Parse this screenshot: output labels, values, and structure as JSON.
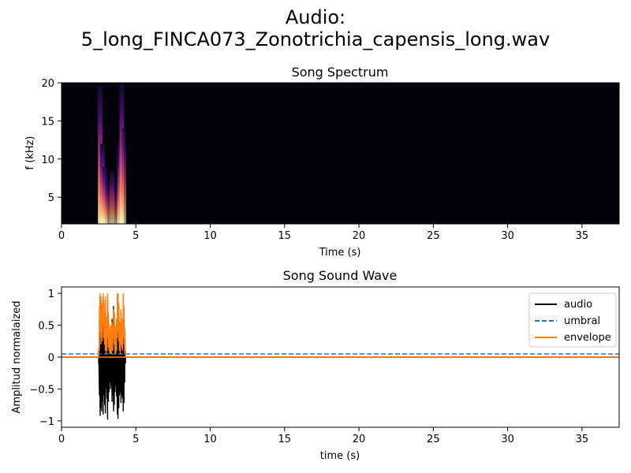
{
  "figure": {
    "title_line1": "Audio:",
    "title_line2": "5_long_FINCA073_Zonotrichia_capensis_long.wav"
  },
  "chart_data": [
    {
      "type": "heatmap",
      "title": "Song Spectrum",
      "xlabel": "Time (s)",
      "ylabel": "f (kHz)",
      "xlim": [
        0,
        37.5
      ],
      "ylim": [
        1.5,
        20
      ],
      "xticks": [
        0,
        5,
        10,
        15,
        20,
        25,
        30,
        35
      ],
      "yticks": [
        5,
        10,
        15,
        20
      ],
      "background_color": "#03020b",
      "colormap": "magma",
      "active_region": {
        "t_start": 2.5,
        "t_end": 4.3
      },
      "energy_bands": [
        {
          "t": 2.6,
          "f_low": 1.5,
          "f_high": 19.5,
          "intensity": 0.9
        },
        {
          "t": 2.75,
          "f_low": 1.5,
          "f_high": 12.0,
          "intensity": 1.0
        },
        {
          "t": 2.9,
          "f_low": 1.5,
          "f_high": 9.0,
          "intensity": 0.8
        },
        {
          "t": 3.1,
          "f_low": 1.5,
          "f_high": 7.0,
          "intensity": 0.6
        },
        {
          "t": 3.4,
          "f_low": 1.5,
          "f_high": 8.5,
          "intensity": 0.7
        },
        {
          "t": 3.7,
          "f_low": 1.5,
          "f_high": 6.5,
          "intensity": 0.55
        },
        {
          "t": 3.9,
          "f_low": 1.5,
          "f_high": 12.0,
          "intensity": 0.8
        },
        {
          "t": 4.05,
          "f_low": 1.5,
          "f_high": 20.0,
          "intensity": 0.9
        },
        {
          "t": 4.2,
          "f_low": 1.5,
          "f_high": 14.0,
          "intensity": 0.6
        }
      ]
    },
    {
      "type": "line",
      "title": "Song Sound Wave",
      "xlabel": "time (s)",
      "ylabel": "Amplitud normalaized",
      "xlim": [
        0,
        37.5
      ],
      "ylim": [
        -1.1,
        1.1
      ],
      "xticks": [
        0,
        5,
        10,
        15,
        20,
        25,
        30,
        35
      ],
      "yticks": [
        -1.0,
        -0.5,
        0.0,
        0.5,
        1.0
      ],
      "legend_position": "top-right",
      "series": [
        {
          "name": "audio",
          "color": "#000000",
          "style": "solid",
          "x": [
            2.5,
            2.55,
            2.6,
            2.65,
            2.7,
            2.75,
            2.8,
            2.85,
            2.9,
            2.95,
            3.0,
            3.05,
            3.1,
            3.15,
            3.2,
            3.25,
            3.3,
            3.35,
            3.4,
            3.45,
            3.5,
            3.55,
            3.6,
            3.65,
            3.7,
            3.75,
            3.8,
            3.85,
            3.9,
            3.95,
            4.0,
            4.05,
            4.1,
            4.15,
            4.2,
            4.25,
            4.3
          ],
          "min": [
            -0.1,
            -0.6,
            -0.92,
            -0.8,
            -0.85,
            -0.7,
            -0.9,
            -0.6,
            -0.75,
            -0.88,
            -0.5,
            -0.65,
            -0.98,
            -0.7,
            -0.55,
            -0.4,
            -0.5,
            -0.45,
            -0.7,
            -0.6,
            -0.85,
            -0.75,
            -0.55,
            -0.45,
            -0.62,
            -0.9,
            -0.97,
            -0.8,
            -0.6,
            -0.55,
            -0.72,
            -0.6,
            -0.65,
            -0.85,
            -0.72,
            -0.4,
            -0.1
          ],
          "max": [
            0.1,
            0.6,
            0.95,
            0.9,
            0.8,
            0.7,
            0.95,
            0.85,
            0.7,
            0.85,
            0.5,
            0.6,
            0.95,
            0.6,
            0.5,
            0.35,
            0.45,
            0.5,
            0.6,
            0.55,
            0.8,
            0.7,
            0.5,
            0.45,
            0.6,
            0.85,
            0.95,
            0.8,
            0.55,
            0.5,
            0.7,
            0.55,
            0.6,
            0.9,
            0.75,
            0.4,
            0.1
          ]
        },
        {
          "name": "umbral",
          "color": "#1f77b4",
          "style": "dashed",
          "x": [
            0,
            37.5
          ],
          "y": [
            0.05,
            0.05
          ]
        },
        {
          "name": "envelope",
          "color": "#ff7f0e",
          "style": "solid",
          "x": [
            2.5,
            2.55,
            2.6,
            2.65,
            2.7,
            2.75,
            2.8,
            2.85,
            2.9,
            2.95,
            3.0,
            3.05,
            3.1,
            3.15,
            3.2,
            3.25,
            3.3,
            3.35,
            3.4,
            3.45,
            3.5,
            3.55,
            3.6,
            3.65,
            3.7,
            3.75,
            3.8,
            3.85,
            3.9,
            3.95,
            4.0,
            4.05,
            4.1,
            4.15,
            4.2,
            4.25,
            4.3
          ],
          "min": [
            0,
            0.1,
            0.4,
            0.2,
            0.3,
            0.25,
            0.5,
            0.3,
            0.2,
            0.1,
            0.05,
            0.1,
            0.3,
            0.15,
            0.1,
            0.05,
            0.05,
            0.05,
            0.1,
            0.1,
            0.3,
            0.2,
            0.05,
            0.05,
            0.1,
            0.3,
            0.4,
            0.25,
            0.1,
            0.05,
            0.2,
            0.15,
            0.1,
            0.3,
            0.2,
            0.05,
            0
          ],
          "max": [
            0.15,
            0.8,
            1.0,
            0.95,
            0.8,
            0.85,
            1.0,
            0.9,
            0.7,
            0.95,
            0.55,
            0.65,
            1.0,
            0.7,
            0.5,
            0.4,
            0.5,
            0.5,
            0.55,
            0.5,
            0.75,
            0.7,
            0.5,
            0.45,
            0.6,
            1.0,
            1.0,
            0.85,
            0.5,
            0.55,
            0.75,
            0.6,
            0.6,
            1.0,
            0.8,
            0.45,
            0.1
          ]
        }
      ]
    }
  ]
}
